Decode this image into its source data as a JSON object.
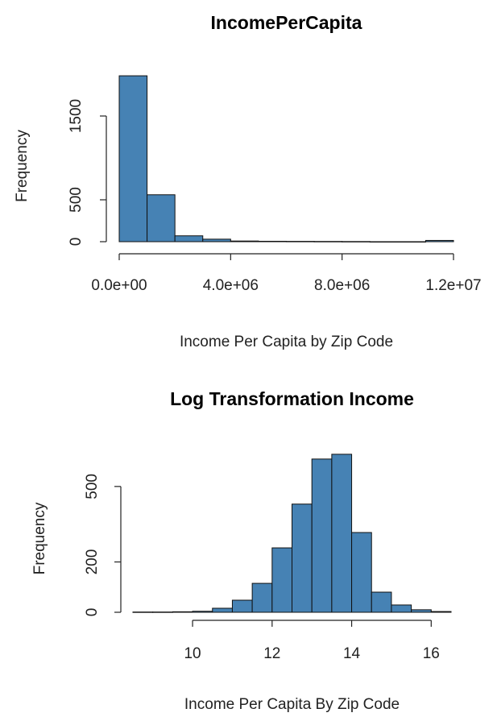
{
  "chart_data": [
    {
      "type": "histogram",
      "title": "IncomePerCapita",
      "xlabel": "Income Per Capita by Zip Code",
      "ylabel": "Frequency",
      "bins": [
        0,
        1000000,
        2000000,
        3000000,
        4000000,
        5000000,
        6000000,
        7000000,
        8000000,
        9000000,
        10000000,
        11000000,
        12000000
      ],
      "values": [
        1980,
        560,
        70,
        30,
        8,
        5,
        4,
        3,
        2,
        0,
        0,
        15
      ],
      "color": "#4682b4",
      "xlim": [
        0,
        12000000
      ],
      "ylim": [
        0,
        2000
      ],
      "xticks": [
        {
          "value": 0,
          "label": "0.0e+00"
        },
        {
          "value": 4000000,
          "label": "4.0e+06"
        },
        {
          "value": 8000000,
          "label": "8.0e+06"
        },
        {
          "value": 12000000,
          "label": "1.2e+07"
        }
      ],
      "yticks": [
        0,
        500,
        1500
      ]
    },
    {
      "type": "histogram",
      "title": "Log Transformation Income",
      "xlabel": "Income Per Capita By Zip Code",
      "ylabel": "Frequency",
      "bins": [
        8.5,
        9,
        9.5,
        10,
        10.5,
        11,
        11.5,
        12,
        12.5,
        13,
        13.5,
        14,
        14.5,
        15,
        15.5,
        16,
        16.5
      ],
      "values": [
        1,
        1,
        2,
        4,
        16,
        48,
        115,
        256,
        430,
        609,
        628,
        317,
        80,
        29,
        10,
        3
      ],
      "color": "#4682b4",
      "xlim": [
        8.5,
        16.5
      ],
      "ylim": [
        0,
        650
      ],
      "xticks": [
        10,
        12,
        14,
        16
      ],
      "yticks": [
        0,
        200,
        500
      ]
    }
  ]
}
